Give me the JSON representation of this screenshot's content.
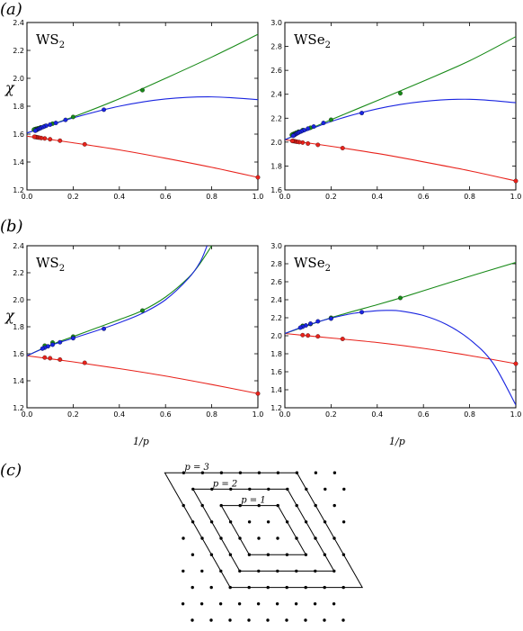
{
  "figure": {
    "panel_labels": [
      "(a)",
      "(b)",
      "(c)"
    ],
    "chi_symbol": "χ",
    "xlabel": "1/p",
    "lattice_labels": [
      "p = 1",
      "p = 2",
      "p = 3"
    ]
  },
  "colors": {
    "red": "#e8221b",
    "green": "#188a18",
    "blue": "#1a25e0",
    "grid": "#000000"
  },
  "chart_data": [
    {
      "type": "line",
      "panel": "a",
      "material": "WS",
      "subscript": "2",
      "xlim": [
        0,
        1
      ],
      "ylim": [
        1.2,
        2.4
      ],
      "xticks": [
        "0.0",
        "0.2",
        "0.4",
        "0.6",
        "0.8",
        "1.0"
      ],
      "yticks": [
        "1.2",
        "1.4",
        "1.6",
        "1.8",
        "2.0",
        "2.2",
        "2.4"
      ],
      "series": [
        {
          "color": "red",
          "points": [
            [
              1,
              1.29
            ],
            [
              0.25,
              1.527
            ],
            [
              0.143,
              1.553
            ],
            [
              0.1,
              1.563
            ],
            [
              0.077,
              1.569
            ],
            [
              0.062,
              1.572
            ],
            [
              0.052,
              1.575
            ],
            [
              0.045,
              1.577
            ],
            [
              0.04,
              1.579
            ],
            [
              0.035,
              1.58
            ],
            [
              0.032,
              1.581
            ]
          ],
          "curve": [
            [
              0,
              1.585
            ],
            [
              0.2,
              1.538
            ],
            [
              0.4,
              1.487
            ],
            [
              0.6,
              1.427
            ],
            [
              0.8,
              1.362
            ],
            [
              1,
              1.29
            ]
          ]
        },
        {
          "color": "green",
          "points": [
            [
              0.5,
              1.915
            ],
            [
              0.2,
              1.723
            ],
            [
              0.111,
              1.675
            ],
            [
              0.077,
              1.657
            ],
            [
              0.059,
              1.648
            ],
            [
              0.048,
              1.642
            ],
            [
              0.04,
              1.638
            ],
            [
              0.034,
              1.635
            ],
            [
              0.03,
              1.632
            ]
          ],
          "curve": [
            [
              0,
              1.608
            ],
            [
              0.2,
              1.723
            ],
            [
              0.4,
              1.853
            ],
            [
              0.6,
              2.0
            ],
            [
              0.8,
              2.152
            ],
            [
              1,
              2.315
            ]
          ]
        },
        {
          "color": "blue",
          "points": [
            [
              0.333,
              1.775
            ],
            [
              0.167,
              1.702
            ],
            [
              0.125,
              1.68
            ],
            [
              0.1,
              1.668
            ],
            [
              0.083,
              1.66
            ],
            [
              0.071,
              1.652
            ],
            [
              0.062,
              1.646
            ],
            [
              0.056,
              1.641
            ],
            [
              0.05,
              1.637
            ],
            [
              0.045,
              1.633
            ],
            [
              0.042,
              1.63
            ],
            [
              0.038,
              1.627
            ],
            [
              0.036,
              1.624
            ]
          ],
          "curve": [
            [
              0,
              1.608
            ],
            [
              0.2,
              1.716
            ],
            [
              0.4,
              1.8
            ],
            [
              0.6,
              1.852
            ],
            [
              0.8,
              1.867
            ],
            [
              1,
              1.847
            ]
          ]
        }
      ]
    },
    {
      "type": "line",
      "panel": "a",
      "material": "WSe",
      "subscript": "2",
      "xlim": [
        0,
        1
      ],
      "ylim": [
        1.6,
        3.0
      ],
      "xticks": [
        "0.0",
        "0.2",
        "0.4",
        "0.6",
        "0.8",
        "1.0"
      ],
      "yticks": [
        "1.6",
        "1.8",
        "2.0",
        "2.2",
        "2.4",
        "2.6",
        "2.8",
        "3.0"
      ],
      "series": [
        {
          "color": "red",
          "points": [
            [
              1,
              1.675
            ],
            [
              0.25,
              1.95
            ],
            [
              0.143,
              1.977
            ],
            [
              0.1,
              1.988
            ],
            [
              0.077,
              1.996
            ],
            [
              0.062,
              2.0
            ],
            [
              0.052,
              2.003
            ],
            [
              0.045,
              2.006
            ],
            [
              0.04,
              2.008
            ],
            [
              0.035,
              2.009
            ],
            [
              0.032,
              2.01
            ]
          ],
          "curve": [
            [
              0,
              2.02
            ],
            [
              0.2,
              1.965
            ],
            [
              0.4,
              1.905
            ],
            [
              0.6,
              1.835
            ],
            [
              0.8,
              1.76
            ],
            [
              1,
              1.675
            ]
          ]
        },
        {
          "color": "green",
          "points": [
            [
              0.5,
              2.408
            ],
            [
              0.2,
              2.187
            ],
            [
              0.111,
              2.12
            ],
            [
              0.077,
              2.1
            ],
            [
              0.059,
              2.087
            ],
            [
              0.048,
              2.078
            ],
            [
              0.04,
              2.07
            ],
            [
              0.034,
              2.065
            ],
            [
              0.03,
              2.06
            ]
          ],
          "curve": [
            [
              0,
              2.02
            ],
            [
              0.2,
              2.187
            ],
            [
              0.4,
              2.347
            ],
            [
              0.6,
              2.51
            ],
            [
              0.8,
              2.68
            ],
            [
              1,
              2.882
            ]
          ]
        },
        {
          "color": "blue",
          "points": [
            [
              0.333,
              2.243
            ],
            [
              0.167,
              2.16
            ],
            [
              0.125,
              2.13
            ],
            [
              0.1,
              2.113
            ],
            [
              0.083,
              2.1
            ],
            [
              0.071,
              2.09
            ],
            [
              0.062,
              2.083
            ],
            [
              0.056,
              2.076
            ],
            [
              0.05,
              2.07
            ],
            [
              0.045,
              2.065
            ],
            [
              0.042,
              2.06
            ],
            [
              0.038,
              2.056
            ],
            [
              0.036,
              2.053
            ]
          ],
          "curve": [
            [
              0,
              2.02
            ],
            [
              0.2,
              2.172
            ],
            [
              0.4,
              2.278
            ],
            [
              0.6,
              2.34
            ],
            [
              0.8,
              2.358
            ],
            [
              1,
              2.33
            ]
          ]
        }
      ]
    },
    {
      "type": "line",
      "panel": "b",
      "material": "WS",
      "subscript": "2",
      "xlim": [
        0,
        1
      ],
      "ylim": [
        1.2,
        2.4
      ],
      "xticks": [
        "0.0",
        "0.2",
        "0.4",
        "0.6",
        "0.8",
        "1.0"
      ],
      "yticks": [
        "1.2",
        "1.4",
        "1.6",
        "1.8",
        "2.0",
        "2.2",
        "2.4"
      ],
      "series": [
        {
          "color": "red",
          "points": [
            [
              1,
              1.305
            ],
            [
              0.25,
              1.533
            ],
            [
              0.143,
              1.557
            ],
            [
              0.1,
              1.567
            ],
            [
              0.077,
              1.572
            ]
          ],
          "curve": [
            [
              0,
              1.585
            ],
            [
              0.2,
              1.54
            ],
            [
              0.4,
              1.49
            ],
            [
              0.6,
              1.435
            ],
            [
              0.8,
              1.372
            ],
            [
              1,
              1.305
            ]
          ]
        },
        {
          "color": "green",
          "points": [
            [
              0.5,
              1.92
            ],
            [
              0.2,
              1.727
            ],
            [
              0.111,
              1.683
            ],
            [
              0.077,
              1.66
            ]
          ],
          "curve": [
            [
              0,
              1.585
            ],
            [
              0.1,
              1.663
            ],
            [
              0.2,
              1.727
            ],
            [
              0.3,
              1.79
            ],
            [
              0.4,
              1.853
            ],
            [
              0.5,
              1.92
            ],
            [
              0.6,
              2.02
            ],
            [
              0.7,
              2.165
            ],
            [
              0.75,
              2.27
            ],
            [
              0.8,
              2.4
            ]
          ]
        },
        {
          "color": "blue",
          "points": [
            [
              0.333,
              1.785
            ],
            [
              0.2,
              1.715
            ],
            [
              0.143,
              1.685
            ],
            [
              0.111,
              1.667
            ],
            [
              0.091,
              1.655
            ],
            [
              0.077,
              1.645
            ],
            [
              0.067,
              1.638
            ]
          ],
          "curve": [
            [
              0,
              1.585
            ],
            [
              0.1,
              1.66
            ],
            [
              0.2,
              1.715
            ],
            [
              0.3,
              1.77
            ],
            [
              0.4,
              1.83
            ],
            [
              0.5,
              1.9
            ],
            [
              0.6,
              2.0
            ],
            [
              0.7,
              2.16
            ],
            [
              0.75,
              2.28
            ],
            [
              0.78,
              2.4
            ]
          ]
        }
      ]
    },
    {
      "type": "line",
      "panel": "b",
      "material": "WSe",
      "subscript": "2",
      "xlim": [
        0,
        1
      ],
      "ylim": [
        1.2,
        3.0
      ],
      "xticks": [
        "0.0",
        "0.2",
        "0.4",
        "0.6",
        "0.8",
        "1.0"
      ],
      "yticks": [
        "1.2",
        "1.4",
        "1.6",
        "1.8",
        "2.0",
        "2.2",
        "2.4",
        "2.6",
        "2.8",
        "3.0"
      ],
      "series": [
        {
          "color": "red",
          "points": [
            [
              1,
              1.69
            ],
            [
              0.25,
              1.965
            ],
            [
              0.143,
              1.993
            ],
            [
              0.1,
              2.003
            ],
            [
              0.077,
              2.007
            ]
          ],
          "curve": [
            [
              0,
              2.025
            ],
            [
              0.2,
              1.975
            ],
            [
              0.4,
              1.925
            ],
            [
              0.6,
              1.86
            ],
            [
              0.8,
              1.78
            ],
            [
              1,
              1.69
            ]
          ]
        },
        {
          "color": "green",
          "points": [
            [
              0.5,
              2.42
            ],
            [
              0.2,
              2.2
            ],
            [
              0.111,
              2.13
            ],
            [
              0.077,
              2.11
            ]
          ],
          "curve": [
            [
              0,
              2.025
            ],
            [
              0.2,
              2.2
            ],
            [
              0.4,
              2.345
            ],
            [
              0.5,
              2.42
            ],
            [
              0.6,
              2.5
            ],
            [
              0.8,
              2.66
            ],
            [
              1,
              2.815
            ]
          ]
        },
        {
          "color": "blue",
          "points": [
            [
              0.333,
              2.262
            ],
            [
              0.2,
              2.19
            ],
            [
              0.143,
              2.16
            ],
            [
              0.111,
              2.135
            ],
            [
              0.091,
              2.115
            ],
            [
              0.077,
              2.1
            ],
            [
              0.067,
              2.09
            ]
          ],
          "curve": [
            [
              0,
              2.025
            ],
            [
              0.1,
              2.12
            ],
            [
              0.2,
              2.195
            ],
            [
              0.3,
              2.25
            ],
            [
              0.4,
              2.278
            ],
            [
              0.45,
              2.282
            ],
            [
              0.5,
              2.275
            ],
            [
              0.6,
              2.225
            ],
            [
              0.7,
              2.125
            ],
            [
              0.8,
              1.96
            ],
            [
              0.9,
              1.7
            ],
            [
              1,
              1.23
            ]
          ]
        }
      ]
    }
  ]
}
